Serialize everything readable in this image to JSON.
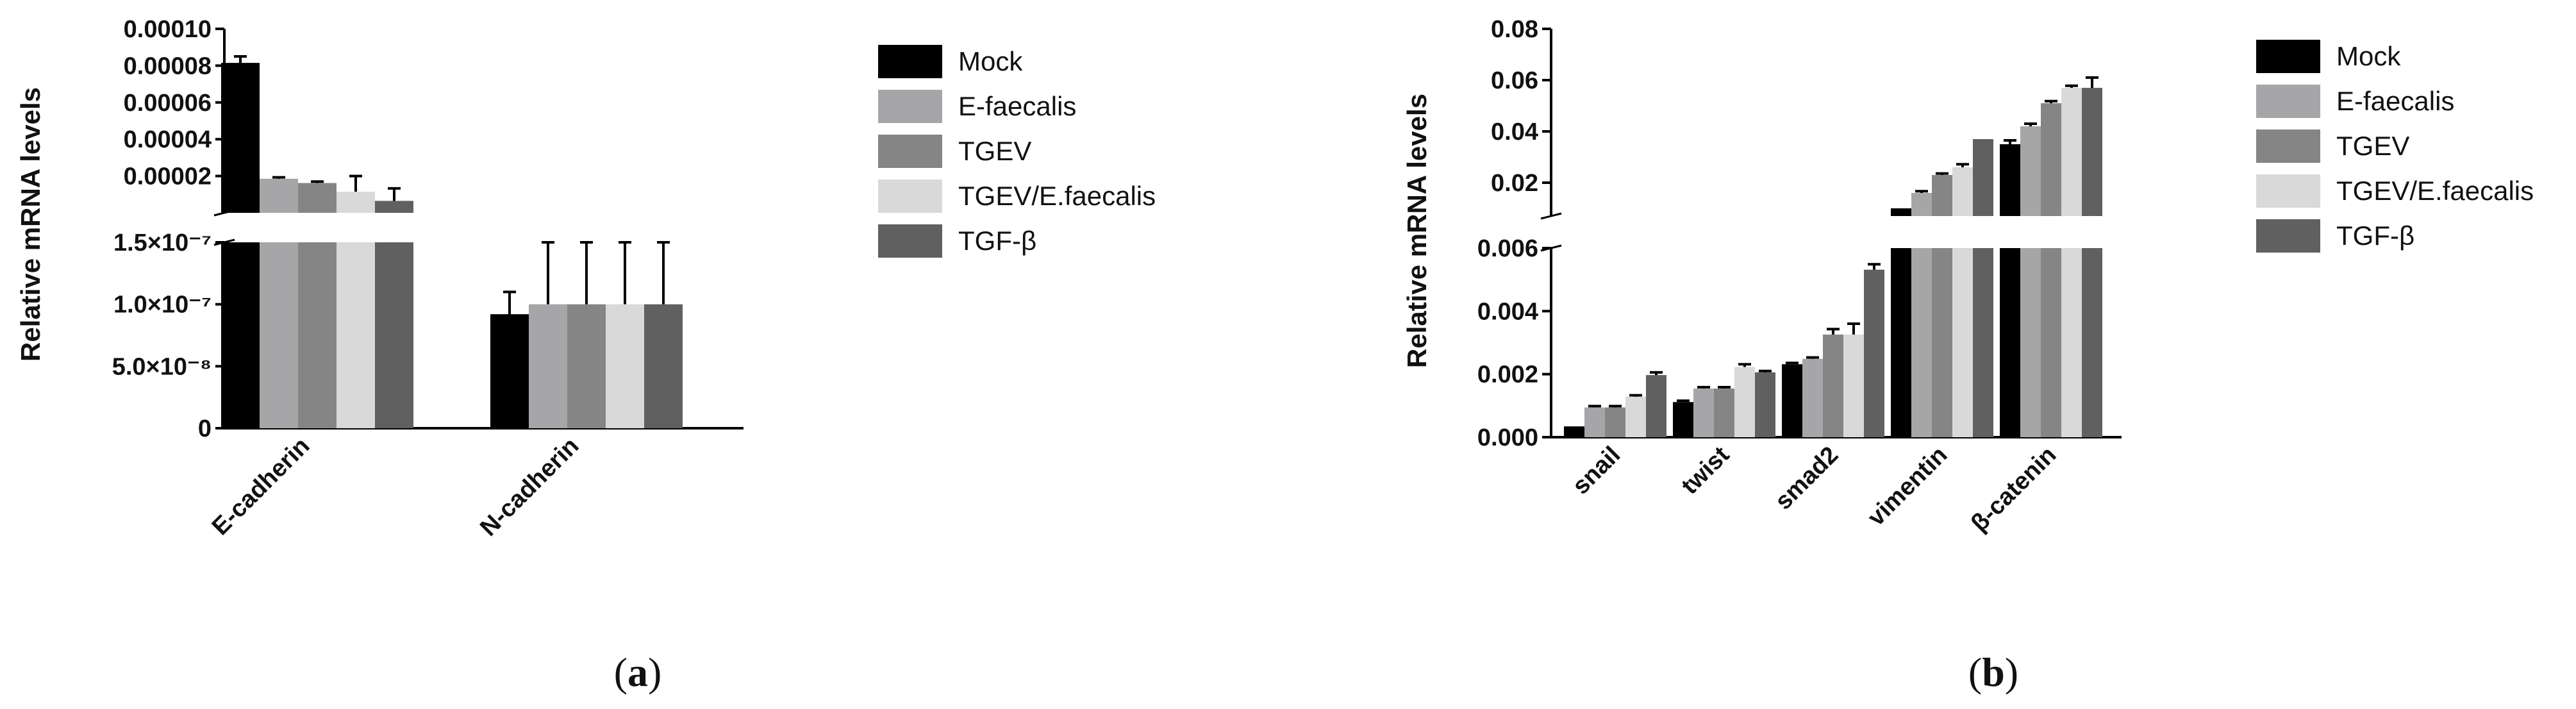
{
  "chart_data": [
    {
      "panel": "a",
      "type": "bar",
      "ylabel": "Relative mRNA levels",
      "categories": [
        "E-cadherin",
        "N-cadherin"
      ],
      "y_axis_break": {
        "lower_range": [
          0,
          1.5e-07
        ],
        "lower_ticks": [
          "0",
          "5.0×10⁻⁸",
          "1.0×10⁻⁷",
          "1.5×10⁻⁷"
        ],
        "upper_range": [
          0,
          0.0001
        ],
        "upper_ticks": [
          "0.00002",
          "0.00004",
          "0.00006",
          "0.00008",
          "0.00010"
        ]
      },
      "series": [
        {
          "name": "Mock",
          "color": "#000000",
          "values": [
            8.15e-05,
            9.2e-08
          ],
          "errors": [
            3.5e-06,
            1.8e-08
          ]
        },
        {
          "name": "E-faecalis",
          "color": "#a6a6a8",
          "values": [
            1.85e-05,
            1e-07
          ],
          "errors": [
            8e-07,
            1e-07
          ]
        },
        {
          "name": "TGEV",
          "color": "#858585",
          "values": [
            1.62e-05,
            1e-07
          ],
          "errors": [
            8e-07,
            1e-07
          ]
        },
        {
          "name": "TGEV/E.faecalis",
          "color": "#d9d9d9",
          "values": [
            1.15e-05,
            1e-07
          ],
          "errors": [
            8.5e-06,
            1e-07
          ]
        },
        {
          "name": "TGF-β",
          "color": "#606060",
          "values": [
            6.5e-06,
            1e-07
          ],
          "errors": [
            6.8e-06,
            1e-07
          ]
        }
      ],
      "legend": [
        "Mock",
        "E-faecalis",
        "TGEV",
        "TGEV/E.faecalis",
        "TGF-β"
      ],
      "legend_position": "right"
    },
    {
      "panel": "b",
      "type": "bar",
      "ylabel": "Relative mRNA levels",
      "categories": [
        "snail",
        "twist",
        "smad2",
        "vimentin",
        "β-catenin"
      ],
      "y_axis_break": {
        "lower_range": [
          0,
          0.007
        ],
        "lower_ticks": [
          "0.000",
          "0.002",
          "0.004",
          "0.006"
        ],
        "upper_range": [
          0.007,
          0.08
        ],
        "upper_ticks": [
          "0.02",
          "0.04",
          "0.06",
          "0.08"
        ]
      },
      "series": [
        {
          "name": "Mock",
          "color": "#000000",
          "values": [
            0.0004,
            0.0013,
            0.0027,
            0.01,
            0.035
          ],
          "errors": [
            3e-05,
            5e-05,
            5e-05,
            0.0005,
            0.0015
          ]
        },
        {
          "name": "E-faecalis",
          "color": "#a6a6a8",
          "values": [
            0.0011,
            0.0018,
            0.0029,
            0.016,
            0.042
          ],
          "errors": [
            5e-05,
            5e-05,
            5e-05,
            0.0007,
            0.001
          ]
        },
        {
          "name": "TGEV",
          "color": "#858585",
          "values": [
            0.0011,
            0.0018,
            0.0038,
            0.023,
            0.051
          ],
          "errors": [
            5e-05,
            5e-05,
            0.0002,
            0.0006,
            0.0008
          ]
        },
        {
          "name": "TGEV/E.faecalis",
          "color": "#d9d9d9",
          "values": [
            0.0015,
            0.0026,
            0.0038,
            0.026,
            0.057
          ],
          "errors": [
            5e-05,
            0.0001,
            0.0004,
            0.0012,
            0.0008
          ]
        },
        {
          "name": "TGF-β",
          "color": "#606060",
          "values": [
            0.0023,
            0.0024,
            0.0062,
            0.037,
            0.057
          ],
          "errors": [
            0.0001,
            5e-05,
            0.0002,
            0.0004,
            0.004
          ]
        }
      ],
      "legend": [
        "Mock",
        "E-faecalis",
        "TGEV",
        "TGEV/E.faecalis",
        "TGF-β"
      ],
      "legend_position": "right"
    }
  ],
  "captions": {
    "a_open": "(",
    "a_letter": "a",
    "a_close": ")",
    "b_open": "(",
    "b_letter": "b",
    "b_close": ")"
  }
}
